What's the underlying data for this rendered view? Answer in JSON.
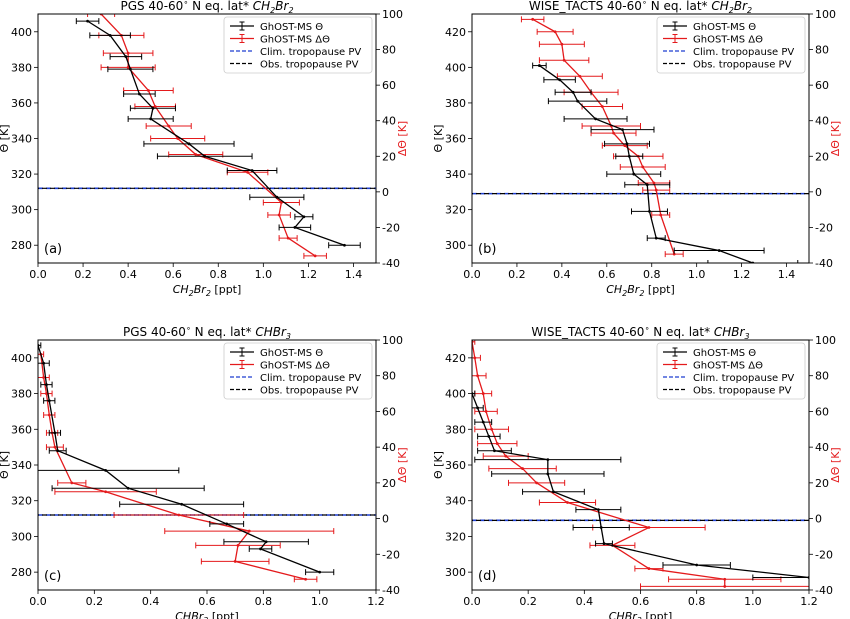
{
  "figure": {
    "background": "#ffffff",
    "colors": {
      "ghost_theta": "#000000",
      "ghost_dtheta": "#e41a1c",
      "clim_tropopause": "#1f3fd1",
      "obs_tropopause": "#000000",
      "axis": "#000000",
      "right_axis_label": "#e41a1c"
    }
  },
  "chart_data": [
    {
      "id": "a",
      "type": "line",
      "title_prefix": "PGS 40-60",
      "title_suffix": "N eq. lat*",
      "species_main": "CH",
      "species_sub1": "2",
      "species_mid": "Br",
      "species_sub2": "2",
      "panel_label": "(a)",
      "xlabel_unit": "[ppt]",
      "ylabel": "Θ [K]",
      "ylabel_right": "ΔΘ [K]",
      "xlim": [
        0,
        1.5
      ],
      "xticks": [
        0.0,
        0.2,
        0.4,
        0.6,
        0.8,
        1.0,
        1.2,
        1.4
      ],
      "ylim": [
        270,
        410
      ],
      "yticks": [
        280,
        300,
        320,
        340,
        360,
        380,
        400
      ],
      "y2lim": [
        -40,
        100
      ],
      "y2ticks": [
        -40,
        -20,
        0,
        20,
        40,
        60,
        80,
        100
      ],
      "tropopause_theta": 312,
      "legend": {
        "loc": "upper right",
        "entries": [
          "GhOST-MS Θ",
          "GhOST-MS ΔΘ",
          "Clim. tropopause PV",
          "Obs. tropopause PV"
        ]
      },
      "series": [
        {
          "name": "GhOST-MS Θ",
          "color": "#000000",
          "x": [
            0.22,
            0.32,
            0.39,
            0.41,
            0.45,
            0.51,
            0.5,
            0.67,
            0.74,
            0.95,
            1.06,
            1.18,
            1.14,
            1.36
          ],
          "y": [
            406,
            398,
            386,
            379,
            365,
            357,
            351,
            337,
            330,
            322,
            307,
            296,
            290,
            280
          ],
          "xerr": [
            0.05,
            0.09,
            0.07,
            0.1,
            0.07,
            0.1,
            0.1,
            0.2,
            0.21,
            0.11,
            0.12,
            0.04,
            0.07,
            0.07
          ]
        },
        {
          "name": "GhOST-MS ΔΘ",
          "color": "#e41a1c",
          "x": [
            0.28,
            0.37,
            0.4,
            0.4,
            0.49,
            0.52,
            0.58,
            0.62,
            0.7,
            0.93,
            1.08,
            1.07,
            1.11,
            1.23
          ],
          "y": [
            100,
            88,
            78,
            70,
            57,
            48,
            37,
            30,
            21,
            11,
            -6,
            -13,
            -26,
            -36
          ],
          "xerr": [
            0.06,
            0.1,
            0.11,
            0.12,
            0.11,
            0.09,
            0.1,
            0.12,
            0.12,
            0.09,
            0.08,
            0.05,
            0.04,
            0.05
          ]
        }
      ]
    },
    {
      "id": "b",
      "type": "line",
      "title_prefix": "WISE_TACTS 40-60",
      "title_suffix": "N eq. lat*",
      "species_main": "CH",
      "species_sub1": "2",
      "species_mid": "Br",
      "species_sub2": "2",
      "panel_label": "(b)",
      "xlabel_unit": "[ppt]",
      "ylabel": "Θ [K]",
      "ylabel_right": "ΔΘ [K]",
      "xlim": [
        0,
        1.5
      ],
      "xticks": [
        0.0,
        0.2,
        0.4,
        0.6,
        0.8,
        1.0,
        1.2,
        1.4
      ],
      "ylim": [
        290,
        430
      ],
      "yticks": [
        300,
        320,
        340,
        360,
        380,
        400,
        420
      ],
      "y2lim": [
        -40,
        100
      ],
      "y2ticks": [
        -40,
        -20,
        0,
        20,
        40,
        60,
        80,
        100
      ],
      "tropopause_theta": 329,
      "legend": {
        "loc": "upper right",
        "entries": [
          "GhOST-MS Θ",
          "GhOST-MS ΔΘ",
          "Clim. tropopause PV",
          "Obs. tropopause PV"
        ]
      },
      "series": [
        {
          "name": "GhOST-MS Θ",
          "color": "#000000",
          "x": [
            0.3,
            0.39,
            0.45,
            0.47,
            0.55,
            0.67,
            0.69,
            0.7,
            0.72,
            0.78,
            0.79,
            0.82,
            1.1,
            1.25
          ],
          "y": [
            401,
            393,
            386,
            381,
            371,
            365,
            357,
            350,
            340,
            334,
            319,
            304,
            297,
            290
          ],
          "xerr": [
            0.03,
            0.07,
            0.08,
            0.13,
            0.14,
            0.14,
            0.1,
            0.06,
            0.12,
            0.1,
            0.08,
            0.04,
            0.2,
            0.2
          ]
        },
        {
          "name": "GhOST-MS ΔΘ",
          "color": "#e41a1c",
          "x": [
            0.27,
            0.37,
            0.4,
            0.41,
            0.48,
            0.53,
            0.58,
            0.62,
            0.63,
            0.68,
            0.74,
            0.76,
            0.81,
            0.82,
            0.84,
            0.9
          ],
          "y": [
            97,
            90,
            83,
            74,
            65,
            56,
            48,
            37,
            33,
            26,
            20,
            14,
            5,
            1,
            -13,
            -35
          ],
          "xerr": [
            0.05,
            0.08,
            0.1,
            0.11,
            0.1,
            0.12,
            0.09,
            0.13,
            0.1,
            0.1,
            0.11,
            0.1,
            0.07,
            0.06,
            0.04,
            0.04
          ]
        }
      ]
    },
    {
      "id": "c",
      "type": "line",
      "title_prefix": "PGS 40-60",
      "title_suffix": "N eq. lat*",
      "species_main": "CHBr",
      "species_sub1": "3",
      "species_mid": "",
      "species_sub2": "",
      "panel_label": "(c)",
      "xlabel_unit": "[ppt]",
      "ylabel": "Θ [K]",
      "ylabel_right": "ΔΘ [K]",
      "xlim": [
        0,
        1.2
      ],
      "xticks": [
        0.0,
        0.2,
        0.4,
        0.6,
        0.8,
        1.0,
        1.2
      ],
      "ylim": [
        270,
        410
      ],
      "yticks": [
        280,
        300,
        320,
        340,
        360,
        380,
        400
      ],
      "y2lim": [
        -40,
        100
      ],
      "y2ticks": [
        -40,
        -20,
        0,
        20,
        40,
        60,
        80,
        100
      ],
      "tropopause_theta": 312,
      "legend": {
        "loc": "upper right",
        "entries": [
          "GhOST-MS Θ",
          "GhOST-MS ΔΘ",
          "Clim. tropopause PV",
          "Obs. tropopause PV"
        ]
      },
      "series": [
        {
          "name": "GhOST-MS Θ",
          "color": "#000000",
          "x": [
            0.0,
            0.02,
            0.03,
            0.04,
            0.06,
            0.07,
            0.24,
            0.32,
            0.51,
            0.67,
            0.81,
            0.79,
            1.0
          ],
          "y": [
            407,
            397,
            385,
            376,
            358,
            348,
            337,
            327,
            318,
            307,
            297,
            293,
            280
          ],
          "xerr": [
            0.01,
            0.02,
            0.02,
            0.02,
            0.02,
            0.03,
            0.26,
            0.27,
            0.22,
            0.06,
            0.15,
            0.04,
            0.05
          ]
        },
        {
          "name": "GhOST-MS ΔΘ",
          "color": "#e41a1c",
          "x": [
            0.01,
            0.02,
            0.03,
            0.04,
            0.05,
            0.06,
            0.12,
            0.24,
            0.5,
            0.75,
            0.71,
            0.7,
            0.95
          ],
          "y": [
            92,
            79,
            70,
            58,
            48,
            40,
            20,
            15,
            2,
            -7,
            -15,
            -24,
            -34
          ],
          "xerr": [
            0.01,
            0.02,
            0.02,
            0.02,
            0.02,
            0.03,
            0.05,
            0.18,
            0.23,
            0.3,
            0.15,
            0.12,
            0.04
          ]
        }
      ]
    },
    {
      "id": "d",
      "type": "line",
      "title_prefix": "WISE_TACTS 40-60",
      "title_suffix": "N eq. lat*",
      "species_main": "CHBr",
      "species_sub1": "3",
      "species_mid": "",
      "species_sub2": "",
      "panel_label": "(d)",
      "xlabel_unit": "[ppt]",
      "ylabel": "Θ [K]",
      "ylabel_right": "ΔΘ [K]",
      "xlim": [
        0,
        1.2
      ],
      "xticks": [
        0.0,
        0.2,
        0.4,
        0.6,
        0.8,
        1.0,
        1.2
      ],
      "ylim": [
        290,
        430
      ],
      "yticks": [
        300,
        320,
        340,
        360,
        380,
        400,
        420
      ],
      "y2lim": [
        -40,
        100
      ],
      "y2ticks": [
        -40,
        -20,
        0,
        20,
        40,
        60,
        80,
        100
      ],
      "tropopause_theta": 329,
      "legend": {
        "loc": "upper right",
        "entries": [
          "GhOST-MS Θ",
          "GhOST-MS ΔΘ",
          "Clim. tropopause PV",
          "Obs. tropopause PV"
        ]
      },
      "series": [
        {
          "name": "GhOST-MS Θ",
          "color": "#000000",
          "x": [
            0.0,
            0.02,
            0.04,
            0.06,
            0.08,
            0.27,
            0.27,
            0.29,
            0.45,
            0.46,
            0.47,
            0.8,
            1.2
          ],
          "y": [
            400,
            392,
            384,
            376,
            368,
            363,
            355,
            345,
            335,
            325,
            316,
            304,
            297
          ],
          "xerr": [
            0.01,
            0.02,
            0.03,
            0.04,
            0.06,
            0.26,
            0.2,
            0.11,
            0.08,
            0.1,
            0.03,
            0.12,
            0.2
          ]
        },
        {
          "name": "GhOST-MS ΔΘ",
          "color": "#e41a1c",
          "x": [
            0.0,
            0.01,
            0.02,
            0.04,
            0.05,
            0.07,
            0.09,
            0.12,
            0.18,
            0.23,
            0.34,
            0.63,
            0.5,
            0.63,
            0.9,
            0.9
          ],
          "y": [
            99,
            90,
            80,
            70,
            60,
            50,
            42,
            35,
            28,
            20,
            9,
            -5,
            -15,
            -28,
            -34,
            -38
          ],
          "xerr": [
            0.01,
            0.02,
            0.03,
            0.03,
            0.04,
            0.06,
            0.07,
            0.08,
            0.12,
            0.1,
            0.1,
            0.2,
            0.08,
            0.05,
            0.2,
            0.3
          ]
        }
      ]
    }
  ]
}
